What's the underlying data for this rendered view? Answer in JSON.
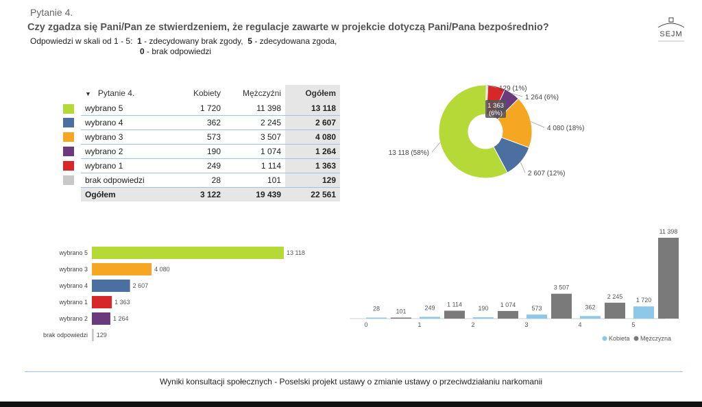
{
  "header": {
    "title": "Pytanie 4.",
    "question": "Czy zgadza się Pani/Pan ze stwierdzeniem, że regulacje zawarte w projekcie dotyczą Pani/Pana  bezpośrednio?",
    "scale_prefix": "Odpowiedzi w skali od 1 - 5:",
    "scale_1_num": "1",
    "scale_1_text": " - zdecydowany brak zgody,",
    "scale_5_num": "5",
    "scale_5_text": " - zdecydowana zgoda,",
    "scale_0_num": "0",
    "scale_0_text": " - brak odpowiedzi"
  },
  "logo": {
    "text": "SEJM"
  },
  "table": {
    "headers": [
      "Pytanie 4.",
      "Kobiety",
      "Mężczyźni",
      "Ogółem"
    ],
    "rows": [
      {
        "label": "wybrano 5",
        "color": "#b5d936",
        "k": "1 720",
        "m": "11 398",
        "o": "13 118"
      },
      {
        "label": "wybrano 4",
        "color": "#4a6fa0",
        "k": "362",
        "m": "2 245",
        "o": "2 607"
      },
      {
        "label": "wybrano 3",
        "color": "#f5a623",
        "k": "573",
        "m": "3 507",
        "o": "4 080"
      },
      {
        "label": "wybrano 2",
        "color": "#6b3a7d",
        "k": "190",
        "m": "1 074",
        "o": "1 264"
      },
      {
        "label": "wybrano 1",
        "color": "#d62828",
        "k": "249",
        "m": "1 114",
        "o": "1 363"
      },
      {
        "label": "brak odpowiedzi",
        "color": "#c9c9c9",
        "k": "28",
        "m": "101",
        "o": "129"
      }
    ],
    "total": {
      "label": "Ogółem",
      "k": "3 122",
      "m": "19 439",
      "o": "22 561"
    }
  },
  "chart_data": [
    {
      "type": "pie",
      "donut": true,
      "labels": [
        "wybrano 5",
        "wybrano 4",
        "wybrano 3",
        "wybrano 2",
        "wybrano 1",
        "brak odpowiedzi"
      ],
      "values": [
        13118,
        2607,
        4080,
        1264,
        1363,
        129
      ],
      "colors": [
        "#b5d936",
        "#4a6fa0",
        "#f5a623",
        "#6b3a7d",
        "#d62828",
        "#c9c9c9"
      ],
      "data_labels": [
        "13 118 (58%)",
        "2 607 (12%)",
        "4 080 (18%)",
        "1 264 (6%)",
        "1 363 (6%)",
        "129 (1%)"
      ]
    },
    {
      "type": "bar",
      "orientation": "horizontal",
      "categories": [
        "wybrano 5",
        "wybrano 3",
        "wybrano 4",
        "wybrano 1",
        "wybrano 2",
        "brak odpowiedzi"
      ],
      "values": [
        13118,
        4080,
        2607,
        1363,
        1264,
        129
      ],
      "value_labels": [
        "13 118",
        "4 080",
        "2 607",
        "1 363",
        "1 264",
        "129"
      ],
      "colors": [
        "#b5d936",
        "#f5a623",
        "#4a6fa0",
        "#d62828",
        "#6b3a7d",
        "#c9c9c9"
      ]
    },
    {
      "type": "bar",
      "categories": [
        "0",
        "1",
        "2",
        "3",
        "4",
        "5"
      ],
      "series": [
        {
          "name": "Kobieta",
          "color": "#8ec8e8",
          "values": [
            28,
            249,
            190,
            573,
            362,
            1720
          ],
          "value_labels": [
            "28",
            "249",
            "190",
            "573",
            "362",
            "1 720"
          ]
        },
        {
          "name": "Mężczyzna",
          "color": "#7a7a7a",
          "values": [
            101,
            1114,
            1074,
            3507,
            2245,
            11398
          ],
          "value_labels": [
            "101",
            "1 114",
            "1 074",
            "3 507",
            "2 245",
            "11 398"
          ]
        }
      ],
      "legend": "bottom-right"
    }
  ],
  "footer": {
    "text": "Wyniki konsultacji społecznych - Poselski projekt ustawy o zmianie ustawy o przeciwdziałaniu narkomanii"
  }
}
